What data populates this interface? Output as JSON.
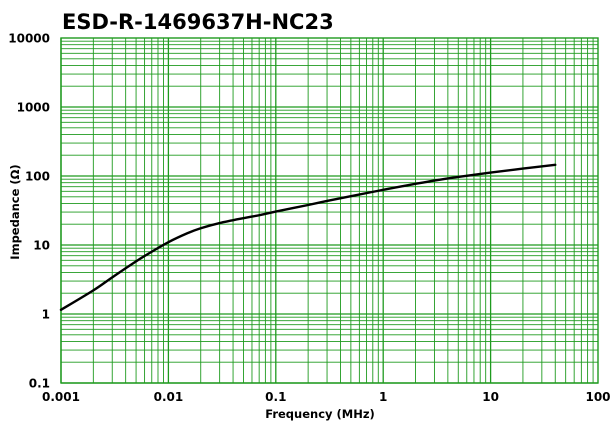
{
  "chart_data": {
    "type": "line",
    "title": "ESD-R-1469637H-NC23",
    "xlabel": "Frequency (MHz)",
    "ylabel": "Impedance (Ω)",
    "x_scale": "log",
    "y_scale": "log",
    "xlim": [
      0.001,
      100
    ],
    "ylim": [
      0.1,
      10000
    ],
    "grid": true,
    "x_ticks": [
      "0.001",
      "0.01",
      "0.1",
      "1",
      "10",
      "100"
    ],
    "y_ticks": [
      "10000",
      "1000",
      "100",
      "10",
      "1",
      "0.1"
    ],
    "series": [
      {
        "x": [
          0.001,
          0.002,
          0.003,
          0.005,
          0.007,
          0.01,
          0.015,
          0.02,
          0.03,
          0.05,
          0.07,
          0.1,
          0.2,
          0.3,
          0.5,
          1,
          2,
          3,
          5,
          10,
          20,
          40
        ],
        "values": [
          1.15,
          2.2,
          3.4,
          5.8,
          8.0,
          11.0,
          14.8,
          17.5,
          20.8,
          24.5,
          27.0,
          30.5,
          38.0,
          43.5,
          51.0,
          63.0,
          77.0,
          86.0,
          97.0,
          112.0,
          128.0,
          145.0
        ]
      }
    ],
    "colors": {
      "grid": "#1e9a1e",
      "line": "#000000",
      "background": "#ffffff"
    }
  }
}
